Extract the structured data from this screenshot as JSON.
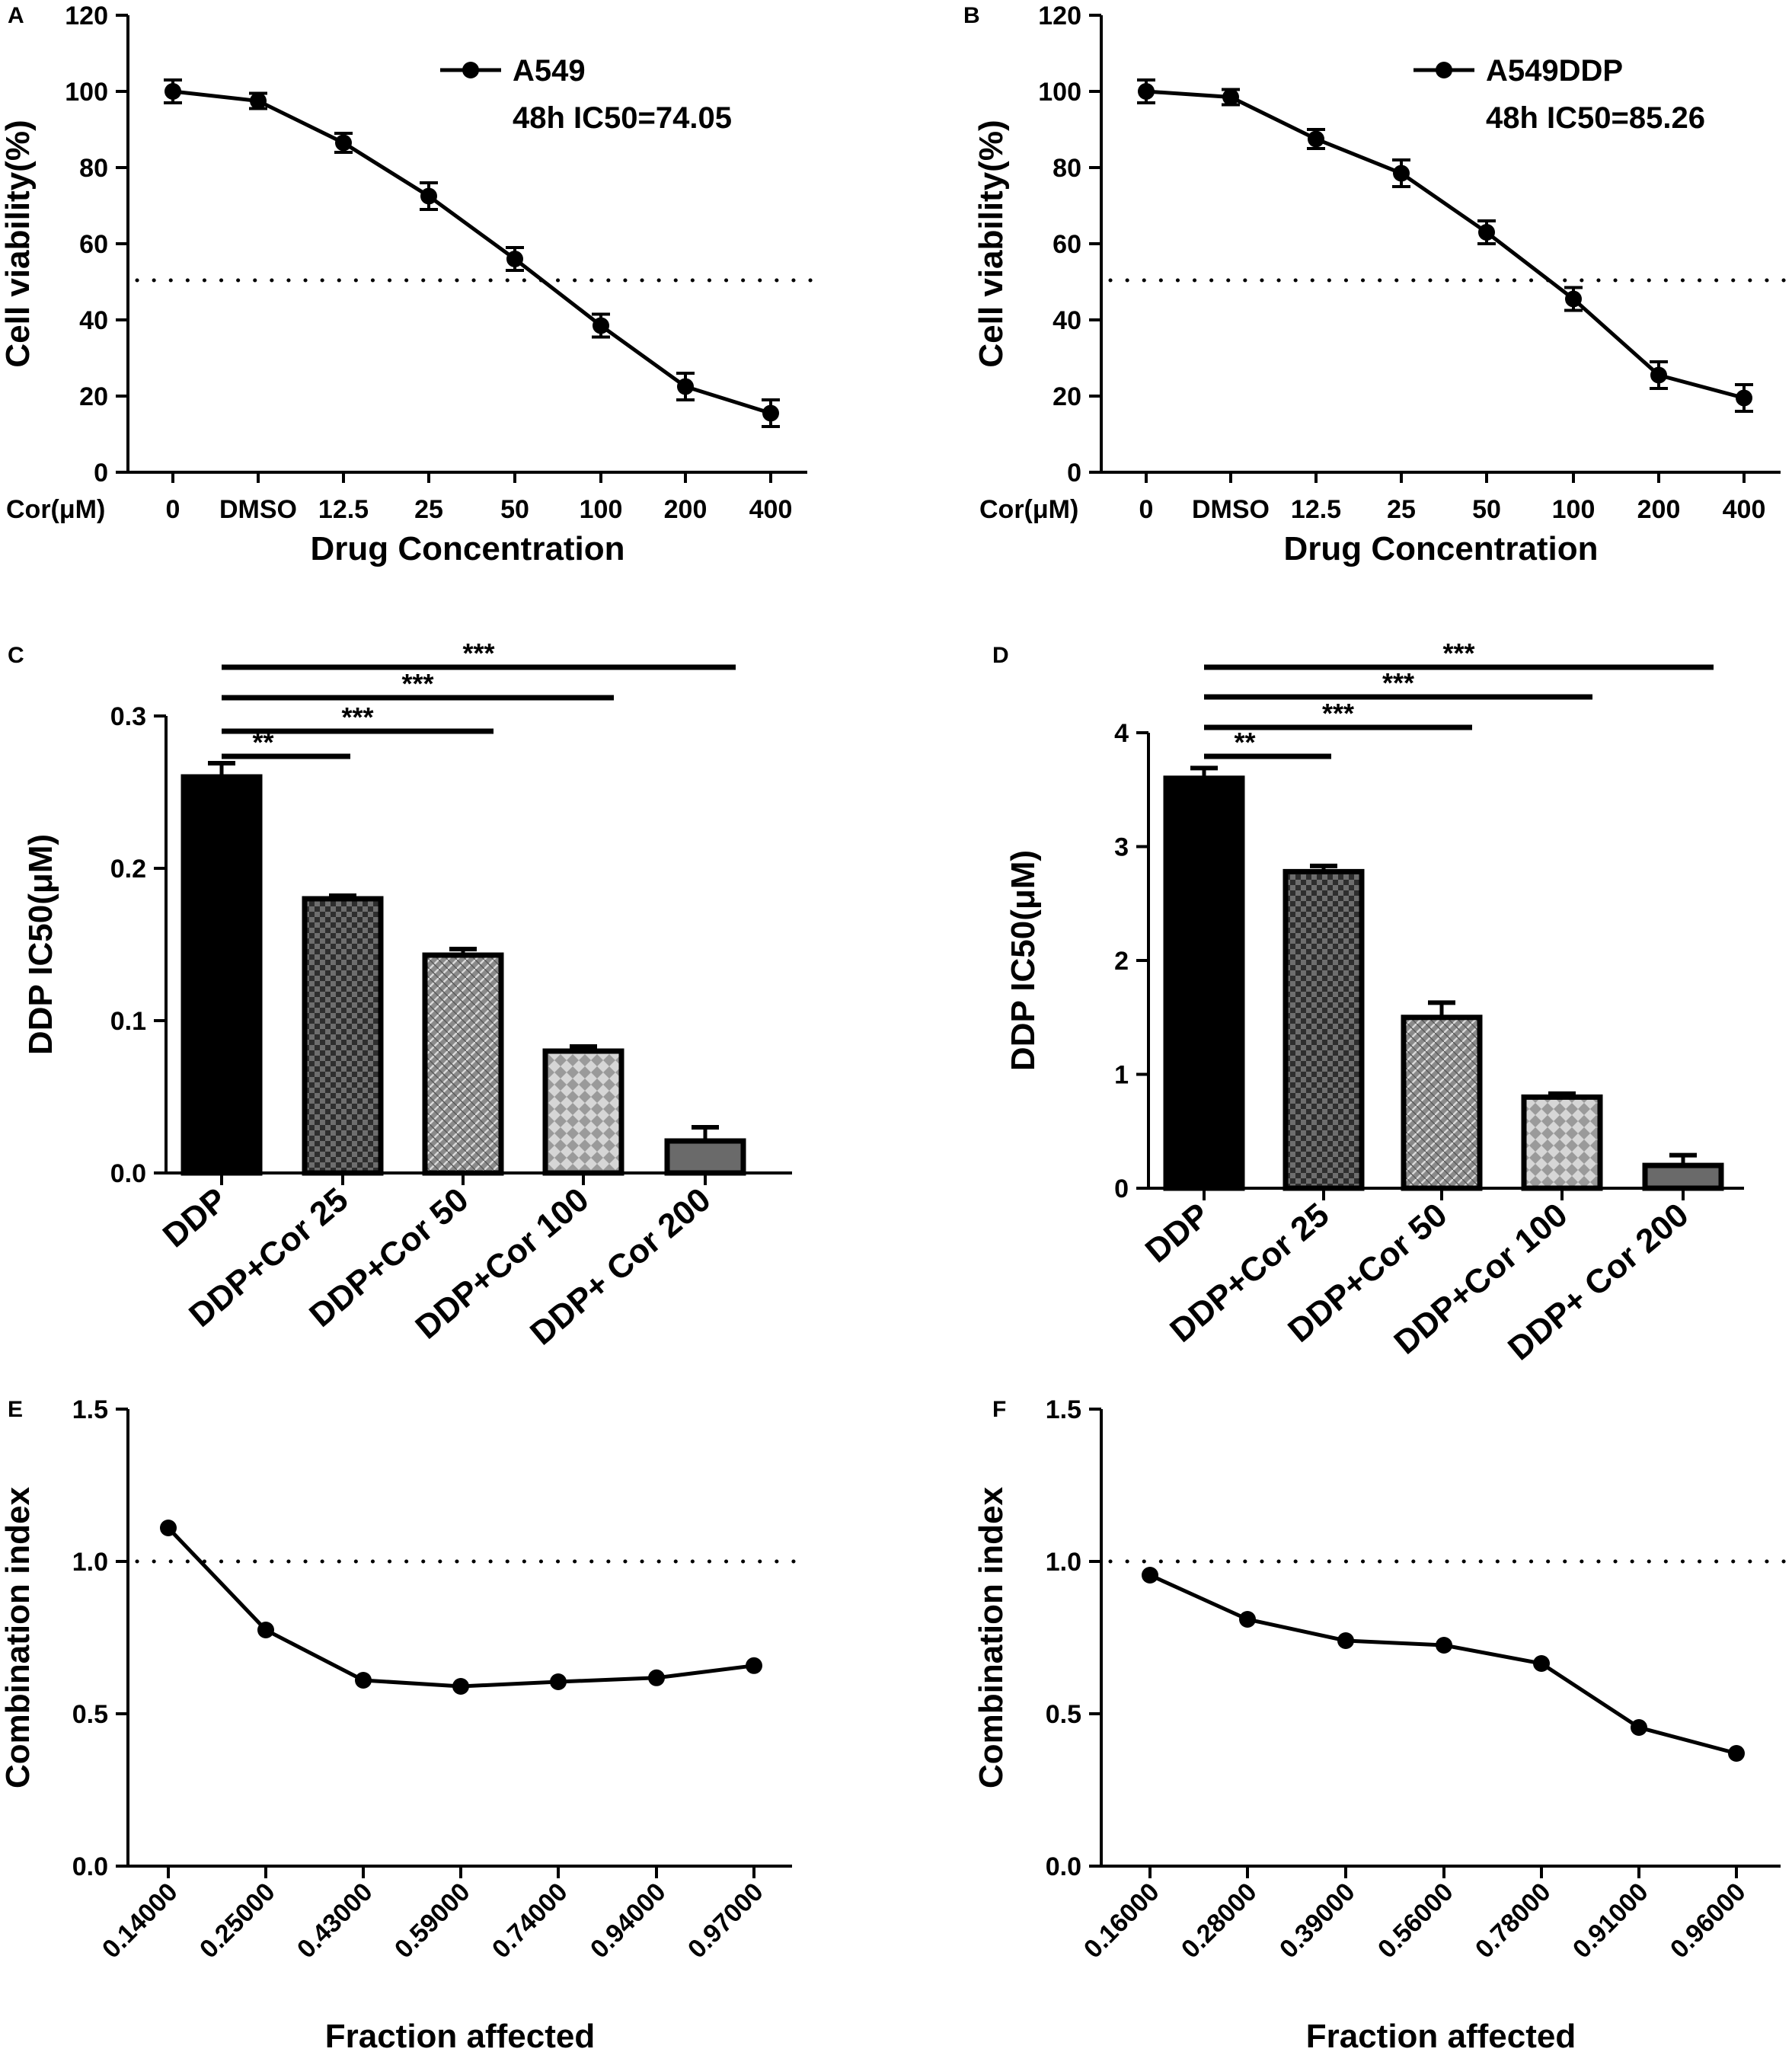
{
  "colors": {
    "ink": "#000000",
    "bar_black": "#000000",
    "bar_dark": "#3a3a3a",
    "bar_mid": "#7a7a7a",
    "bar_light": "#b0b0b0",
    "bar_gray": "#6a6a6a"
  },
  "chart_data": [
    {
      "panel": "A",
      "type": "line",
      "categories": [
        "0",
        "DMSO",
        "12.5",
        "25",
        "50",
        "100",
        "200",
        "400"
      ],
      "category_prefix": "Cor(μM)",
      "values": [
        100,
        97.5,
        86.5,
        72.5,
        56,
        38.5,
        22.5,
        15.5
      ],
      "errors": [
        3,
        2,
        2.5,
        3.5,
        3,
        3,
        3.5,
        3.5
      ],
      "reference_line": 50,
      "legend": {
        "label": "A549",
        "note": "48h IC50=74.05"
      },
      "xlabel": "Drug Concentration",
      "ylabel": "Cell viability(%)",
      "ylim": [
        0,
        120
      ],
      "yticks": [
        "0",
        "20",
        "40",
        "60",
        "80",
        "100",
        "120"
      ]
    },
    {
      "panel": "B",
      "type": "line",
      "categories": [
        "0",
        "DMSO",
        "12.5",
        "25",
        "50",
        "100",
        "200",
        "400"
      ],
      "category_prefix": "Cor(μM)",
      "values": [
        100,
        98.5,
        87.5,
        78.5,
        63,
        45.5,
        25.5,
        19.5
      ],
      "errors": [
        3,
        2,
        2.5,
        3.5,
        3,
        3,
        3.5,
        3.5
      ],
      "reference_line": 50,
      "legend": {
        "label": "A549DDP",
        "note": "48h IC50=85.26"
      },
      "xlabel": "Drug Concentration",
      "ylabel": "Cell viability(%)",
      "ylim": [
        0,
        120
      ],
      "yticks": [
        "0",
        "20",
        "40",
        "60",
        "80",
        "100",
        "120"
      ]
    },
    {
      "panel": "C",
      "type": "bar",
      "categories": [
        "DDP",
        "DDP+Cor 25",
        "DDP+Cor 50",
        "DDP+Cor 100",
        "DDP+ Cor 200"
      ],
      "values": [
        0.26,
        0.18,
        0.143,
        0.08,
        0.021
      ],
      "errors": [
        0.009,
        0.002,
        0.004,
        0.003,
        0.009
      ],
      "ylabel": "DDP IC50(μM)",
      "ylim": [
        0,
        0.3
      ],
      "yticks": [
        "0.0",
        "0.1",
        "0.2",
        "0.3"
      ],
      "significance": [
        {
          "from": 0,
          "to": 1,
          "label": "**"
        },
        {
          "from": 0,
          "to": 2,
          "label": "***"
        },
        {
          "from": 0,
          "to": 3,
          "label": "***"
        },
        {
          "from": 0,
          "to": 4,
          "label": "***"
        }
      ]
    },
    {
      "panel": "D",
      "type": "bar",
      "categories": [
        "DDP",
        "DDP+Cor 25",
        "DDP+Cor 50",
        "DDP+Cor 100",
        "DDP+ Cor 200"
      ],
      "values": [
        3.6,
        2.78,
        1.5,
        0.8,
        0.2
      ],
      "errors": [
        0.09,
        0.05,
        0.13,
        0.03,
        0.09
      ],
      "ylabel": "DDP IC50(μM)",
      "ylim": [
        0,
        4
      ],
      "yticks": [
        "0",
        "1",
        "2",
        "3",
        "4"
      ],
      "significance": [
        {
          "from": 0,
          "to": 1,
          "label": "**"
        },
        {
          "from": 0,
          "to": 2,
          "label": "***"
        },
        {
          "from": 0,
          "to": 3,
          "label": "***"
        },
        {
          "from": 0,
          "to": 4,
          "label": "***"
        }
      ]
    },
    {
      "panel": "E",
      "type": "line",
      "categories": [
        "0.14000",
        "0.25000",
        "0.43000",
        "0.59000",
        "0.74000",
        "0.94000",
        "0.97000"
      ],
      "values": [
        1.11,
        0.775,
        0.61,
        0.59,
        0.605,
        0.618,
        0.658
      ],
      "reference_line": 1.0,
      "xlabel": "Fraction affected",
      "ylabel": "Combination index",
      "ylim": [
        0,
        1.5
      ],
      "yticks": [
        "0.0",
        "0.5",
        "1.0",
        "1.5"
      ]
    },
    {
      "panel": "F",
      "type": "line",
      "categories": [
        "0.16000",
        "0.28000",
        "0.39000",
        "0.56000",
        "0.78000",
        "0.91000",
        "0.96000"
      ],
      "values": [
        0.955,
        0.81,
        0.74,
        0.725,
        0.665,
        0.455,
        0.37
      ],
      "reference_line": 1.0,
      "xlabel": "Fraction affected",
      "ylabel": "Combination index",
      "ylim": [
        0,
        1.5
      ],
      "yticks": [
        "0.0",
        "0.5",
        "1.0",
        "1.5"
      ]
    }
  ]
}
